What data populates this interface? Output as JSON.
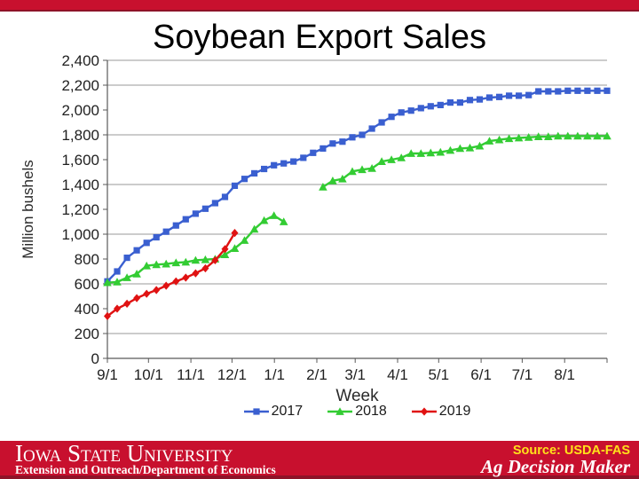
{
  "slide": {
    "title": "Soybean Export Sales",
    "source_label": "Source: USDA-FAS",
    "top_bar_color": "#C8102E",
    "footer": {
      "university": "Iowa State University",
      "department": "Extension and Outreach/Department of Economics",
      "brand": "Ag Decision Maker",
      "band_color": "#C8102E",
      "source_color": "#FFE11A"
    }
  },
  "chart_data": {
    "type": "line",
    "title": "Soybean Export Sales",
    "xlabel": "Week",
    "ylabel": "Million bushels",
    "ylim": [
      0,
      2400
    ],
    "y_tick_step": 200,
    "y_tick_values": [
      0,
      200,
      400,
      600,
      800,
      1000,
      1200,
      1400,
      1600,
      1800,
      2000,
      2200,
      2400
    ],
    "gridline_values": [
      200,
      600,
      1000,
      1400,
      1800,
      2200,
      2400
    ],
    "grid": "horizontal-major",
    "legend_position": "bottom",
    "x_tick_labels": [
      "9/1",
      "10/1",
      "11/1",
      "12/1",
      "1/1",
      "2/1",
      "3/1",
      "4/1",
      "5/1",
      "6/1",
      "7/1",
      "8/1"
    ],
    "x_tick_days": [
      0,
      30,
      61,
      91,
      122,
      153,
      181,
      212,
      242,
      273,
      303,
      334
    ],
    "days_per_year": 365,
    "weeks": 52,
    "x_unit": "weekly points, marketing year Sep 1 - Aug 31",
    "note": "2018 series has a data gap in January (missing weeks); 2019 series ends in early December",
    "series": [
      {
        "name": "2017",
        "color": "#3A5FD0",
        "marker": "square",
        "values": [
          620,
          700,
          810,
          870,
          930,
          975,
          1020,
          1070,
          1120,
          1165,
          1205,
          1250,
          1300,
          1390,
          1445,
          1490,
          1525,
          1555,
          1570,
          1585,
          1615,
          1655,
          1690,
          1730,
          1745,
          1780,
          1800,
          1850,
          1900,
          1945,
          1980,
          1995,
          2015,
          2030,
          2040,
          2060,
          2060,
          2080,
          2085,
          2100,
          2105,
          2115,
          2115,
          2120,
          2150,
          2150,
          2150,
          2155,
          2155,
          2155,
          2155,
          2155
        ]
      },
      {
        "name": "2018",
        "color": "#33CC33",
        "marker": "triangle",
        "values": [
          610,
          615,
          650,
          680,
          745,
          755,
          760,
          770,
          775,
          790,
          795,
          800,
          835,
          885,
          950,
          1040,
          1110,
          1150,
          1100,
          null,
          null,
          null,
          1380,
          1430,
          1445,
          1505,
          1520,
          1530,
          1585,
          1600,
          1615,
          1650,
          1650,
          1655,
          1660,
          1675,
          1690,
          1695,
          1710,
          1750,
          1760,
          1770,
          1775,
          1780,
          1785,
          1785,
          1790,
          1790,
          1790,
          1790,
          1790,
          1790
        ]
      },
      {
        "name": "2019",
        "color": "#E01212",
        "marker": "diamond",
        "values": [
          340,
          400,
          440,
          485,
          520,
          550,
          585,
          620,
          650,
          685,
          725,
          790,
          880,
          1010
        ]
      }
    ]
  }
}
